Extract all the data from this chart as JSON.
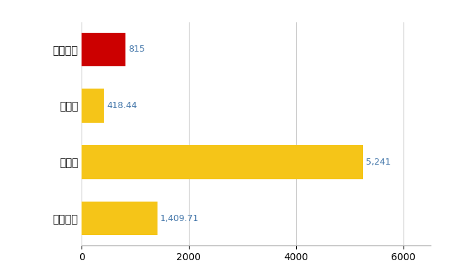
{
  "categories": [
    "喜多方市",
    "県平均",
    "県最大",
    "全国平均"
  ],
  "values": [
    815,
    418.44,
    5241,
    1409.71
  ],
  "labels": [
    "815",
    "418.44",
    "5,241",
    "1,409.71"
  ],
  "bar_colors": [
    "#cc0000",
    "#f5c518",
    "#f5c518",
    "#f5c518"
  ],
  "background_color": "#ffffff",
  "xlim": [
    0,
    6500
  ],
  "xticks": [
    0,
    2000,
    4000,
    6000
  ],
  "grid_color": "#cccccc",
  "label_color": "#4477aa",
  "label_fontsize": 9,
  "bar_height": 0.6
}
